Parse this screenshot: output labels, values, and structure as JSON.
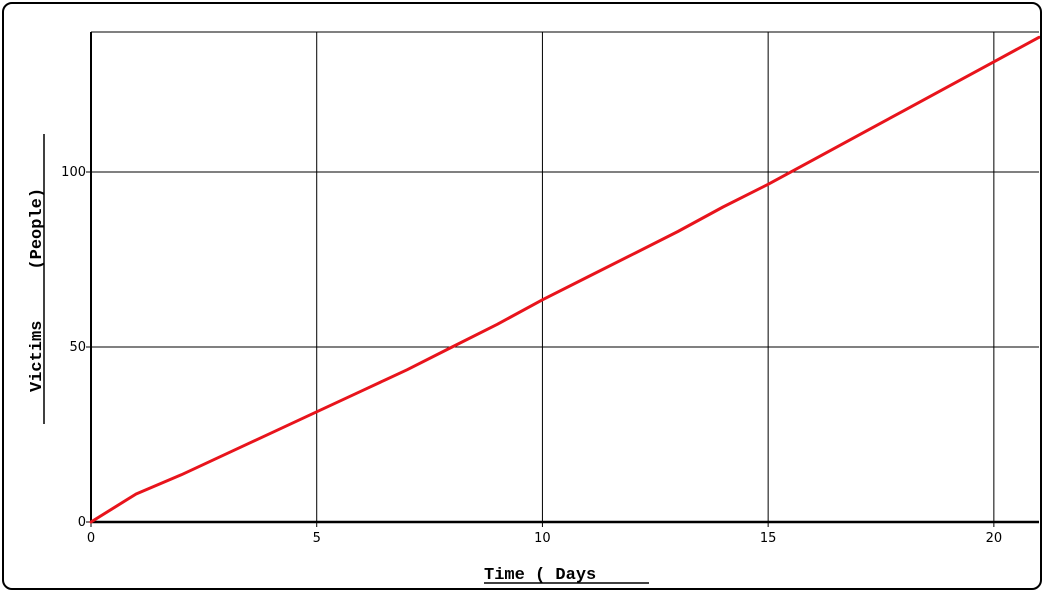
{
  "chart_data": {
    "type": "line",
    "title": "",
    "xlabel": "Time ( Days",
    "ylabel": "Victims     (People)",
    "xlim": [
      0,
      21
    ],
    "ylim": [
      0,
      140
    ],
    "x_ticks": [
      0,
      5,
      10,
      15,
      20
    ],
    "y_ticks": [
      0,
      50,
      100
    ],
    "grid": true,
    "colors": {
      "series": "#e8141c",
      "grid": "#000000",
      "background": "#ffffff"
    },
    "series": [
      {
        "x": [
          0,
          1,
          2,
          3,
          4,
          5,
          6,
          7,
          8,
          9,
          10,
          11,
          12,
          13,
          14,
          15,
          16,
          17,
          18,
          19,
          20,
          21
        ],
        "values": [
          0,
          8,
          13.5,
          19.5,
          25.5,
          31.5,
          37.5,
          43.5,
          50,
          56.5,
          63.5,
          70,
          76.5,
          83,
          90,
          96.5,
          103.5,
          110.5,
          117.5,
          124.5,
          131.5,
          138.5
        ]
      }
    ]
  }
}
